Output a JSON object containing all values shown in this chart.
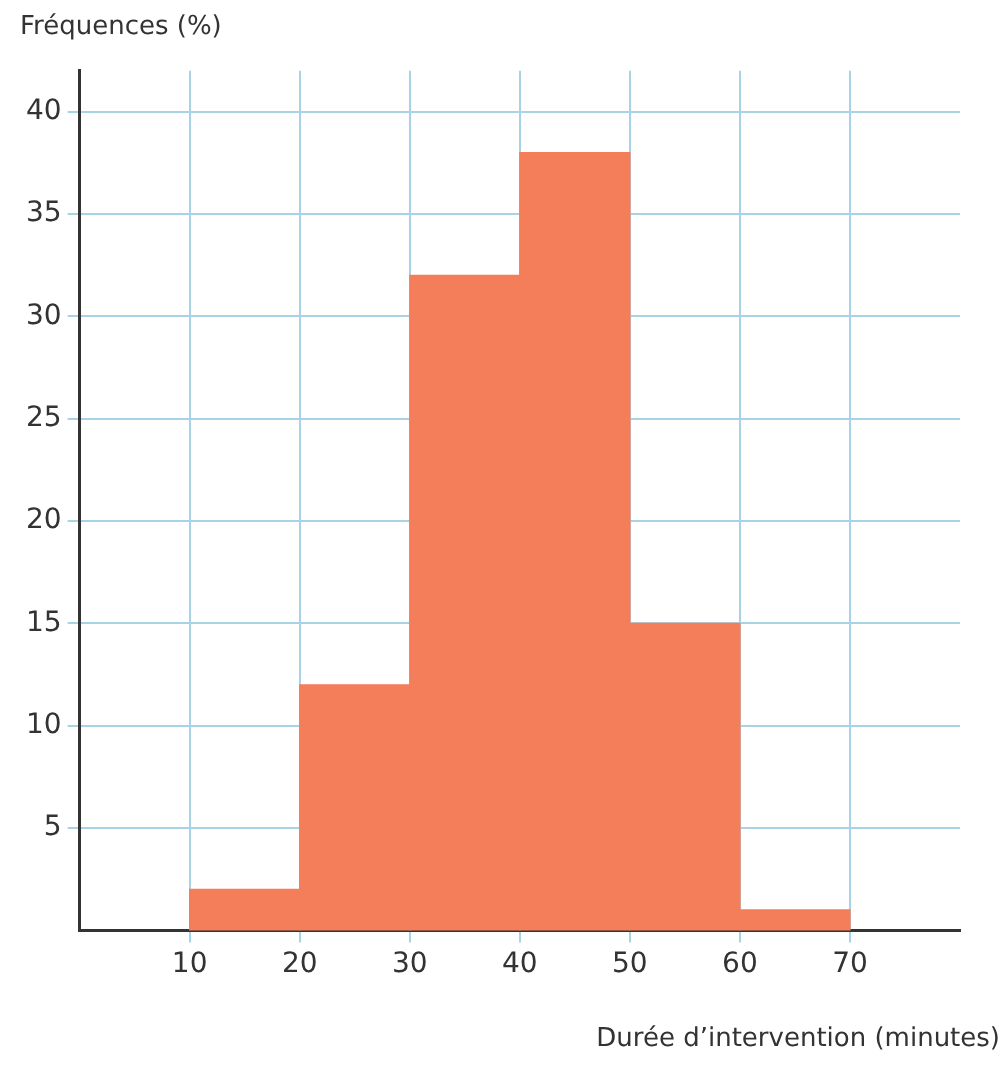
{
  "chart_data": {
    "type": "histogram",
    "xlabel": "Durée d’intervention (minutes)",
    "ylabel": "Fréquences (%)",
    "bins": [
      10,
      20,
      30,
      40,
      50,
      60,
      70
    ],
    "values": [
      2,
      12,
      32,
      38,
      15,
      1
    ],
    "color": "#f47d5a",
    "xlim": [
      0,
      80
    ],
    "xticks": [
      10,
      20,
      30,
      40,
      50,
      60,
      70
    ],
    "ylim": [
      0,
      42
    ],
    "yticks": [
      5,
      10,
      15,
      20,
      25,
      30,
      35,
      40
    ],
    "grid": true
  }
}
